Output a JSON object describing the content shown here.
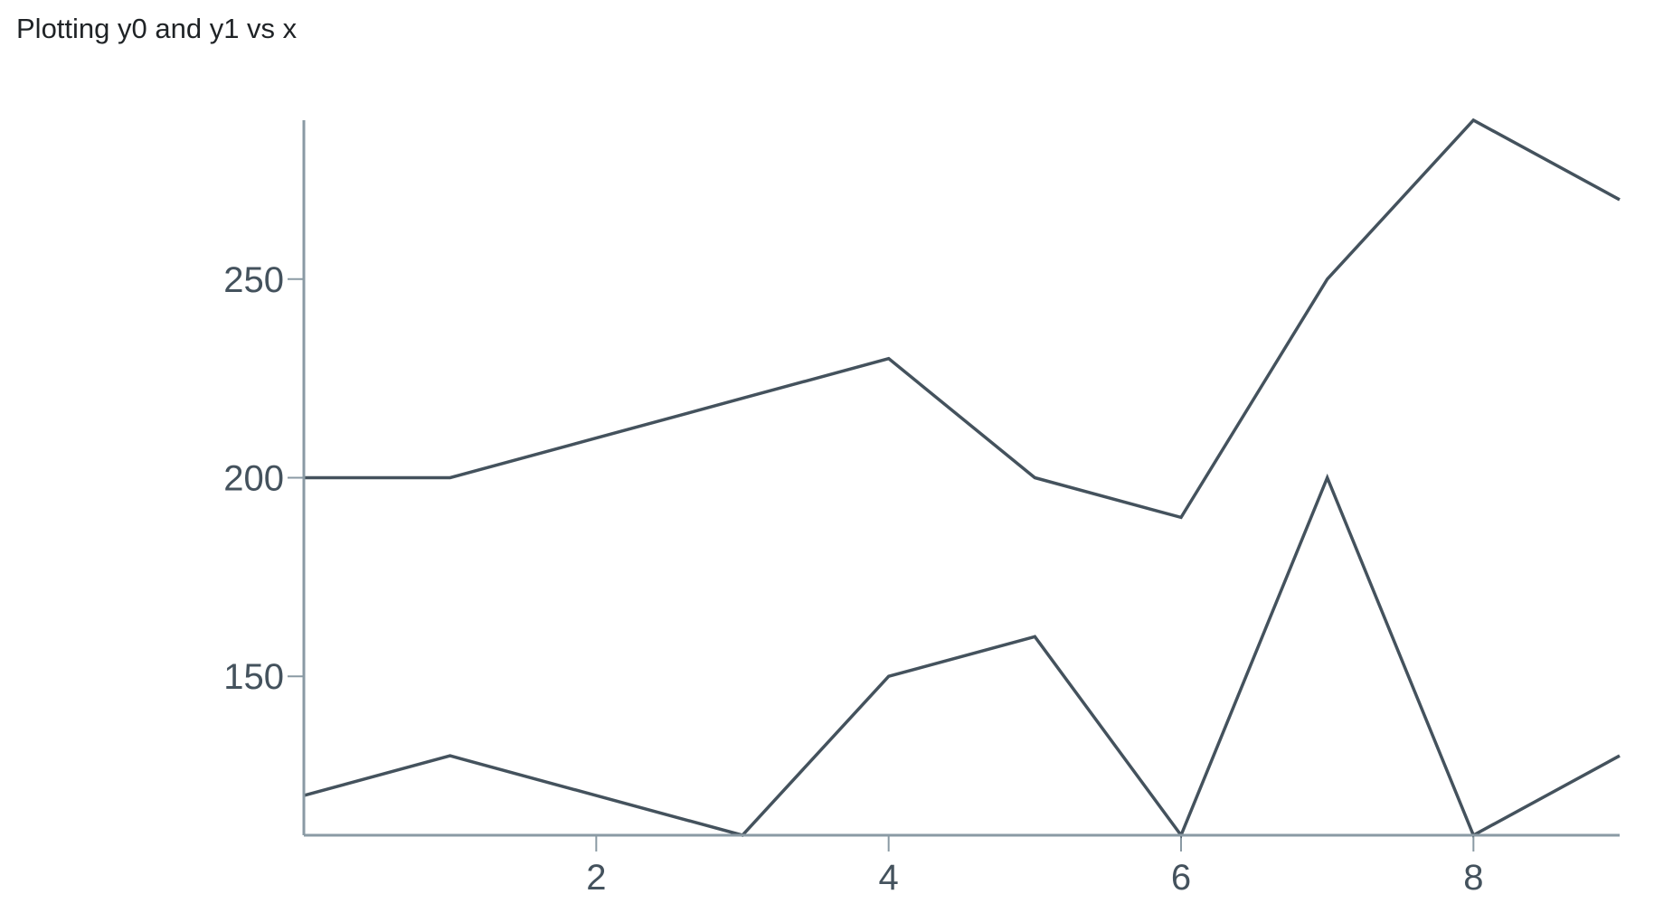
{
  "chart_data": {
    "type": "line",
    "title": "Plotting y0 and y1 vs x",
    "xlabel": "",
    "ylabel": "",
    "x": [
      0,
      1,
      2,
      3,
      4,
      5,
      6,
      7,
      8,
      9
    ],
    "series": [
      {
        "name": "y0",
        "values": [
          200,
          200,
          210,
          220,
          230,
          200,
          190,
          250,
          290,
          270
        ]
      },
      {
        "name": "y1",
        "values": [
          120,
          130,
          120,
          110,
          150,
          160,
          110,
          200,
          110,
          130
        ]
      }
    ],
    "xlim": [
      0,
      9
    ],
    "ylim": [
      110,
      290
    ],
    "xticks": [
      2,
      4,
      6,
      8
    ],
    "yticks": [
      150,
      200,
      250
    ],
    "grid": false,
    "colors": {
      "line": "#44525d",
      "axis": "#8a9aa4",
      "text": "#44525d"
    }
  }
}
